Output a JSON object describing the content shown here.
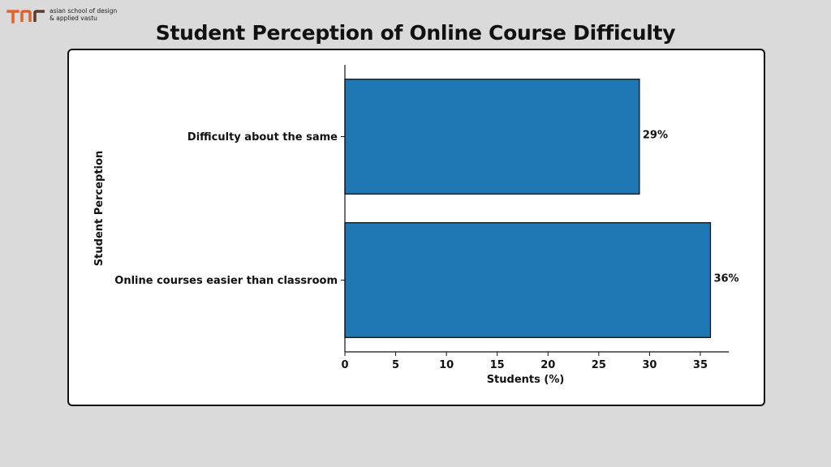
{
  "brand": {
    "line1": "asian school of design",
    "line2": "& applied vastu",
    "colors": [
      "#e3622b",
      "#5a3a2a"
    ]
  },
  "page_title": "Student Perception of Online Course Difficulty",
  "chart_data": {
    "type": "bar",
    "orientation": "horizontal",
    "categories": [
      "Online courses easier than classroom",
      "Difficulty about the same"
    ],
    "values": [
      36,
      29
    ],
    "data_labels": [
      "36%",
      "29%"
    ],
    "xlabel": "Students (%)",
    "ylabel": "Student Perception",
    "xlim": [
      0,
      37.8
    ],
    "xticks": [
      0,
      5,
      10,
      15,
      20,
      25,
      30,
      35
    ],
    "bar_color": "#1f77b4",
    "grid": false
  }
}
